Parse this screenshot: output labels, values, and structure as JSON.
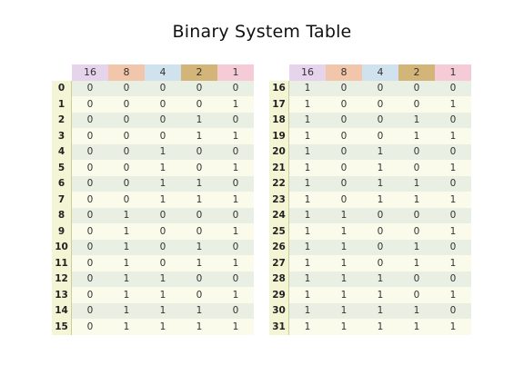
{
  "title": "Binary System Table",
  "headers": [
    {
      "label": "16",
      "color": "#e6d3ec"
    },
    {
      "label": "8",
      "color": "#f2c6aa"
    },
    {
      "label": "4",
      "color": "#cfe2ee"
    },
    {
      "label": "2",
      "color": "#d3b479"
    },
    {
      "label": "1",
      "color": "#f4cbd6"
    }
  ],
  "tables": [
    {
      "rows": [
        {
          "index": "0",
          "bits": [
            "0",
            "0",
            "0",
            "0",
            "0"
          ]
        },
        {
          "index": "1",
          "bits": [
            "0",
            "0",
            "0",
            "0",
            "1"
          ]
        },
        {
          "index": "2",
          "bits": [
            "0",
            "0",
            "0",
            "1",
            "0"
          ]
        },
        {
          "index": "3",
          "bits": [
            "0",
            "0",
            "0",
            "1",
            "1"
          ]
        },
        {
          "index": "4",
          "bits": [
            "0",
            "0",
            "1",
            "0",
            "0"
          ]
        },
        {
          "index": "5",
          "bits": [
            "0",
            "0",
            "1",
            "0",
            "1"
          ]
        },
        {
          "index": "6",
          "bits": [
            "0",
            "0",
            "1",
            "1",
            "0"
          ]
        },
        {
          "index": "7",
          "bits": [
            "0",
            "0",
            "1",
            "1",
            "1"
          ]
        },
        {
          "index": "8",
          "bits": [
            "0",
            "1",
            "0",
            "0",
            "0"
          ]
        },
        {
          "index": "9",
          "bits": [
            "0",
            "1",
            "0",
            "0",
            "1"
          ]
        },
        {
          "index": "10",
          "bits": [
            "0",
            "1",
            "0",
            "1",
            "0"
          ]
        },
        {
          "index": "11",
          "bits": [
            "0",
            "1",
            "0",
            "1",
            "1"
          ]
        },
        {
          "index": "12",
          "bits": [
            "0",
            "1",
            "1",
            "0",
            "0"
          ]
        },
        {
          "index": "13",
          "bits": [
            "0",
            "1",
            "1",
            "0",
            "1"
          ]
        },
        {
          "index": "14",
          "bits": [
            "0",
            "1",
            "1",
            "1",
            "0"
          ]
        },
        {
          "index": "15",
          "bits": [
            "0",
            "1",
            "1",
            "1",
            "1"
          ]
        }
      ]
    },
    {
      "rows": [
        {
          "index": "16",
          "bits": [
            "1",
            "0",
            "0",
            "0",
            "0"
          ]
        },
        {
          "index": "17",
          "bits": [
            "1",
            "0",
            "0",
            "0",
            "1"
          ]
        },
        {
          "index": "18",
          "bits": [
            "1",
            "0",
            "0",
            "1",
            "0"
          ]
        },
        {
          "index": "19",
          "bits": [
            "1",
            "0",
            "0",
            "1",
            "1"
          ]
        },
        {
          "index": "20",
          "bits": [
            "1",
            "0",
            "1",
            "0",
            "0"
          ]
        },
        {
          "index": "21",
          "bits": [
            "1",
            "0",
            "1",
            "0",
            "1"
          ]
        },
        {
          "index": "22",
          "bits": [
            "1",
            "0",
            "1",
            "1",
            "0"
          ]
        },
        {
          "index": "23",
          "bits": [
            "1",
            "0",
            "1",
            "1",
            "1"
          ]
        },
        {
          "index": "24",
          "bits": [
            "1",
            "1",
            "0",
            "0",
            "0"
          ]
        },
        {
          "index": "25",
          "bits": [
            "1",
            "1",
            "0",
            "0",
            "1"
          ]
        },
        {
          "index": "26",
          "bits": [
            "1",
            "1",
            "0",
            "1",
            "0"
          ]
        },
        {
          "index": "27",
          "bits": [
            "1",
            "1",
            "0",
            "1",
            "1"
          ]
        },
        {
          "index": "28",
          "bits": [
            "1",
            "1",
            "1",
            "0",
            "0"
          ]
        },
        {
          "index": "29",
          "bits": [
            "1",
            "1",
            "1",
            "0",
            "1"
          ]
        },
        {
          "index": "30",
          "bits": [
            "1",
            "1",
            "1",
            "1",
            "0"
          ]
        },
        {
          "index": "31",
          "bits": [
            "1",
            "1",
            "1",
            "1",
            "1"
          ]
        }
      ]
    }
  ]
}
